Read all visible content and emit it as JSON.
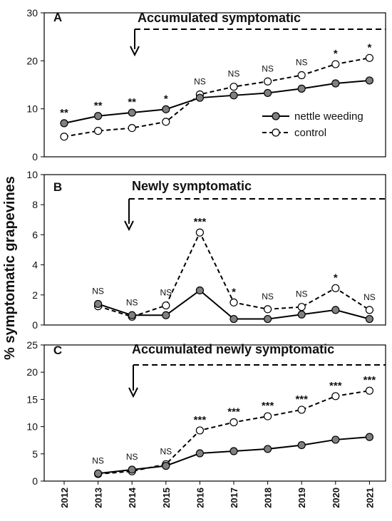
{
  "ylabel": "% symptomatic grapevines",
  "legend": {
    "series1": "nettle weeding",
    "series2": "control"
  },
  "colors": {
    "nettle_marker": "#808080",
    "line": "#000000",
    "control_marker": "#ffffff"
  },
  "chart_data": [
    {
      "type": "line",
      "panel": "A",
      "title": "Accumulated symptomatic",
      "x": [
        2012,
        2013,
        2014,
        2015,
        2016,
        2017,
        2018,
        2019,
        2020,
        2021
      ],
      "ylim": [
        0,
        30
      ],
      "yticks": [
        0,
        10,
        20,
        30
      ],
      "series": [
        {
          "name": "nettle weeding",
          "values": [
            7.0,
            8.5,
            9.2,
            9.9,
            12.3,
            12.8,
            13.3,
            14.2,
            15.3,
            15.9
          ]
        },
        {
          "name": "control",
          "values": [
            4.2,
            5.4,
            6.0,
            7.3,
            13.0,
            14.6,
            15.7,
            17.0,
            19.3,
            20.6
          ]
        }
      ],
      "significance": [
        "**",
        "**",
        "**",
        "*",
        "NS",
        "NS",
        "NS",
        "NS",
        "*",
        "*"
      ],
      "treatment_start": 2014
    },
    {
      "type": "line",
      "panel": "B",
      "title": "Newly symptomatic",
      "x": [
        2013,
        2014,
        2015,
        2016,
        2017,
        2018,
        2019,
        2020,
        2021
      ],
      "ylim": [
        0,
        10
      ],
      "yticks": [
        0,
        2,
        4,
        6,
        8,
        10
      ],
      "series": [
        {
          "name": "nettle weeding",
          "values": [
            1.4,
            0.65,
            0.65,
            2.3,
            0.4,
            0.4,
            0.7,
            1.0,
            0.4
          ]
        },
        {
          "name": "control",
          "values": [
            1.25,
            0.55,
            1.3,
            6.15,
            1.5,
            1.05,
            1.2,
            2.45,
            1.0
          ]
        }
      ],
      "significance": [
        "NS",
        "NS",
        "NS",
        "***",
        "*",
        "NS",
        "NS",
        "*",
        "NS"
      ],
      "treatment_start": 2014
    },
    {
      "type": "line",
      "panel": "C",
      "title": "Accumulated newly symptomatic",
      "x": [
        2013,
        2014,
        2015,
        2016,
        2017,
        2018,
        2019,
        2020,
        2021
      ],
      "ylim": [
        0,
        25
      ],
      "yticks": [
        0,
        5,
        10,
        15,
        20,
        25
      ],
      "series": [
        {
          "name": "nettle weeding",
          "values": [
            1.4,
            2.1,
            2.8,
            5.1,
            5.5,
            5.9,
            6.6,
            7.6,
            8.1
          ]
        },
        {
          "name": "control",
          "values": [
            1.3,
            1.8,
            3.1,
            9.3,
            10.8,
            11.9,
            13.1,
            15.6,
            16.6
          ]
        }
      ],
      "significance": [
        "NS",
        "NS",
        "NS",
        "***",
        "***",
        "***",
        "***",
        "***",
        "***"
      ],
      "treatment_start": 2014
    }
  ],
  "x_categories": [
    "2012",
    "2013",
    "2014",
    "2015",
    "2016",
    "2017",
    "2018",
    "2019",
    "2020",
    "2021"
  ]
}
